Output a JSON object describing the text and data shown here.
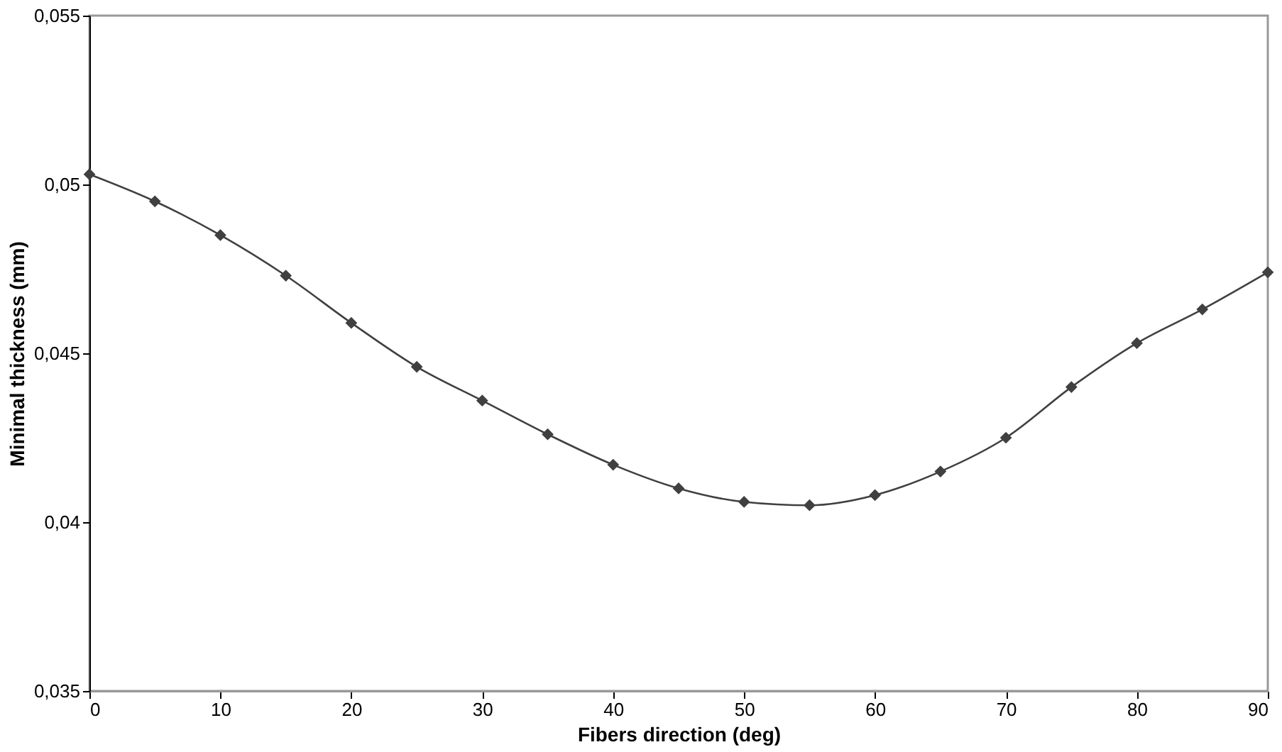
{
  "chart_data": {
    "type": "line",
    "xlabel": "Fibers direction (deg)",
    "ylabel": "Minimal thickness (mm)",
    "x": [
      0,
      5,
      10,
      15,
      20,
      25,
      30,
      35,
      40,
      45,
      50,
      55,
      60,
      65,
      70,
      75,
      80,
      85,
      90
    ],
    "series": [
      {
        "color": "#404040",
        "values": [
          0.0503,
          0.0495,
          0.0485,
          0.0473,
          0.0459,
          0.0446,
          0.0436,
          0.0426,
          0.0417,
          0.041,
          0.0406,
          0.0405,
          0.0408,
          0.0415,
          0.0425,
          0.044,
          0.0453,
          0.0463,
          0.0474
        ]
      }
    ],
    "xlim": [
      0,
      90
    ],
    "xticks": [
      0,
      10,
      20,
      30,
      40,
      50,
      60,
      70,
      80,
      90
    ],
    "ylim": [
      0.035,
      0.055
    ],
    "yticks": [
      {
        "value": 0.035,
        "label": "0,035"
      },
      {
        "value": 0.04,
        "label": "0,04"
      },
      {
        "value": 0.045,
        "label": "0,045"
      },
      {
        "value": 0.05,
        "label": "0,05"
      },
      {
        "value": 0.055,
        "label": "0,055"
      }
    ],
    "marker": "diamond",
    "line_style": "solid",
    "grid": false
  }
}
